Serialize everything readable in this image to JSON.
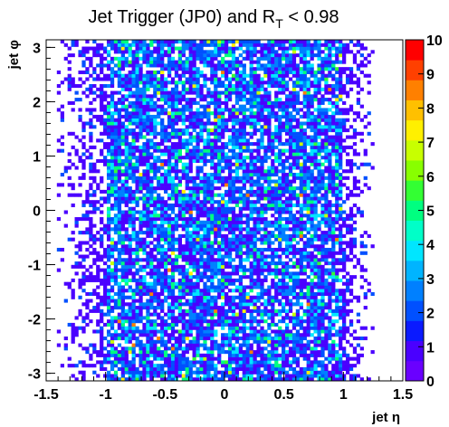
{
  "chart_data": {
    "type": "heatmap",
    "title_main": "Jet Trigger (JP0) and R",
    "title_sub": "T",
    "title_tail": " < 0.98",
    "xlabel": "jet η",
    "ylabel": "jet φ",
    "xlim": [
      -1.5,
      1.5
    ],
    "ylim": [
      -3.14,
      3.14
    ],
    "xticks": [
      -1.5,
      -1,
      -0.5,
      0,
      0.5,
      1,
      1.5
    ],
    "xtick_labels": [
      "-1.5",
      "-1",
      "-0.5",
      "0",
      "0.5",
      "1",
      "1.5"
    ],
    "yticks": [
      -3,
      -2,
      -1,
      0,
      1,
      2,
      3
    ],
    "ytick_labels": [
      "-3",
      "-2",
      "-1",
      "0",
      "1",
      "2",
      "3"
    ],
    "zlim": [
      0,
      10
    ],
    "zticks": [
      0,
      1,
      2,
      3,
      4,
      5,
      6,
      7,
      8,
      9,
      10
    ],
    "ztick_labels": [
      "0",
      "1",
      "2",
      "3",
      "4",
      "5",
      "6",
      "7",
      "8",
      "9",
      "10"
    ],
    "bins": {
      "x": 100,
      "y": 100
    },
    "density_profile": {
      "description_eta_support": [
        -1.4,
        1.2
      ],
      "core_eta_range": [
        -1.0,
        1.0
      ],
      "typical_count": 2,
      "max_count": 10
    },
    "colors": {
      "palette": [
        "#6a00ff",
        "#4a00ff",
        "#0a1aff",
        "#0050ff",
        "#0080ff",
        "#00b4ff",
        "#00e6ff",
        "#00ffc8",
        "#00ff80",
        "#33ff33",
        "#88ff00",
        "#c8ff00",
        "#fff000",
        "#ffc000",
        "#ff8000",
        "#ff4000",
        "#ff0000"
      ]
    }
  }
}
